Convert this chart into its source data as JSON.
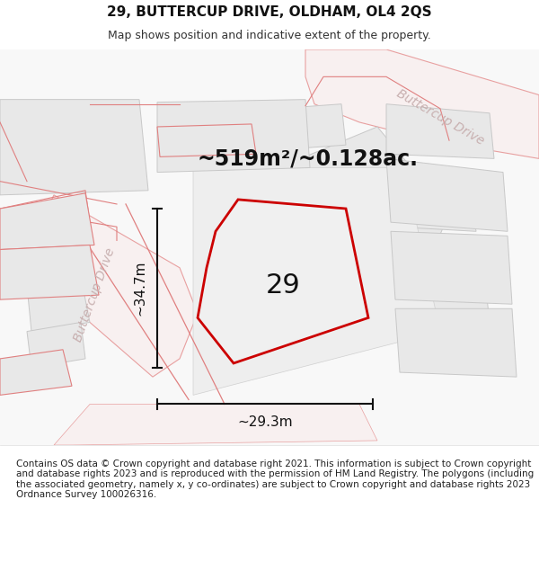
{
  "title": "29, BUTTERCUP DRIVE, OLDHAM, OL4 2QS",
  "subtitle": "Map shows position and indicative extent of the property.",
  "area_text": "~519m²/~0.128ac.",
  "number_label": "29",
  "width_label": "~29.3m",
  "height_label": "~34.7m",
  "road_label_1": "Buttercup Drive",
  "road_label_2": "Buttercup Drive",
  "background_color": "#ffffff",
  "map_bg_color": "#f5f5f5",
  "building_fill": "#e8e8e8",
  "building_stroke": "#cccccc",
  "road_fill": "#ffffff",
  "road_stroke": "#f0a0a0",
  "highlight_stroke": "#cc0000",
  "highlight_fill": "#f0f0f0",
  "dim_color": "#222222",
  "footer_text": "Contains OS data © Crown copyright and database right 2021. This information is subject to Crown copyright and database rights 2023 and is reproduced with the permission of HM Land Registry. The polygons (including the associated geometry, namely x, y co-ordinates) are subject to Crown copyright and database rights 2023 Ordnance Survey 100026316.",
  "title_fontsize": 11,
  "subtitle_fontsize": 9,
  "area_fontsize": 17,
  "number_fontsize": 22,
  "dim_fontsize": 11,
  "road_fontsize": 10,
  "footer_fontsize": 7.5
}
